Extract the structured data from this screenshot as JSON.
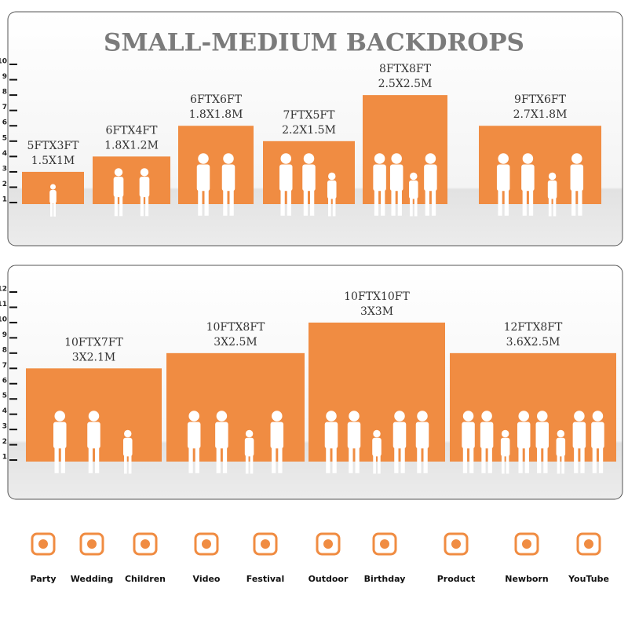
{
  "title": "SMALL-MEDIUM BACKDROPS",
  "panels": [
    {
      "ylim": [
        0,
        10
      ],
      "yticks": [
        1,
        2,
        3,
        4,
        5,
        6,
        7,
        8,
        9,
        10
      ],
      "items": [
        {
          "label": "5FTX3FT",
          "sublabel": "1.5X1M",
          "value": 3
        },
        {
          "label": "6FTX4FT",
          "sublabel": "1.8X1.2M",
          "value": 4
        },
        {
          "label": "6FTX6FT",
          "sublabel": "1.8X1.8M",
          "value": 6
        },
        {
          "label": "7FTX5FT",
          "sublabel": "2.2X1.5M",
          "value": 5
        },
        {
          "label": "8FTX8FT",
          "sublabel": "2.5X2.5M",
          "value": 8
        },
        {
          "label": "9FTX6FT",
          "sublabel": "2.7X1.8M",
          "value": 6
        }
      ]
    },
    {
      "ylim": [
        0,
        12
      ],
      "yticks": [
        1,
        2,
        3,
        4,
        5,
        6,
        7,
        8,
        9,
        10,
        11,
        12
      ],
      "items": [
        {
          "label": "10FTX7FT",
          "sublabel": "3X2.1M",
          "value": 7
        },
        {
          "label": "10FTX8FT",
          "sublabel": "3X2.5M",
          "value": 8
        },
        {
          "label": "10FTX10FT",
          "sublabel": "3X3M",
          "value": 10
        },
        {
          "label": "12FTX8FT",
          "sublabel": "3.6X2.5M",
          "value": 8
        }
      ]
    }
  ],
  "icons": [
    "Party",
    "Wedding",
    "Children",
    "Video",
    "Festival",
    "Outdoor",
    "Birthday",
    "Product",
    "Newborn",
    "YouTube"
  ]
}
